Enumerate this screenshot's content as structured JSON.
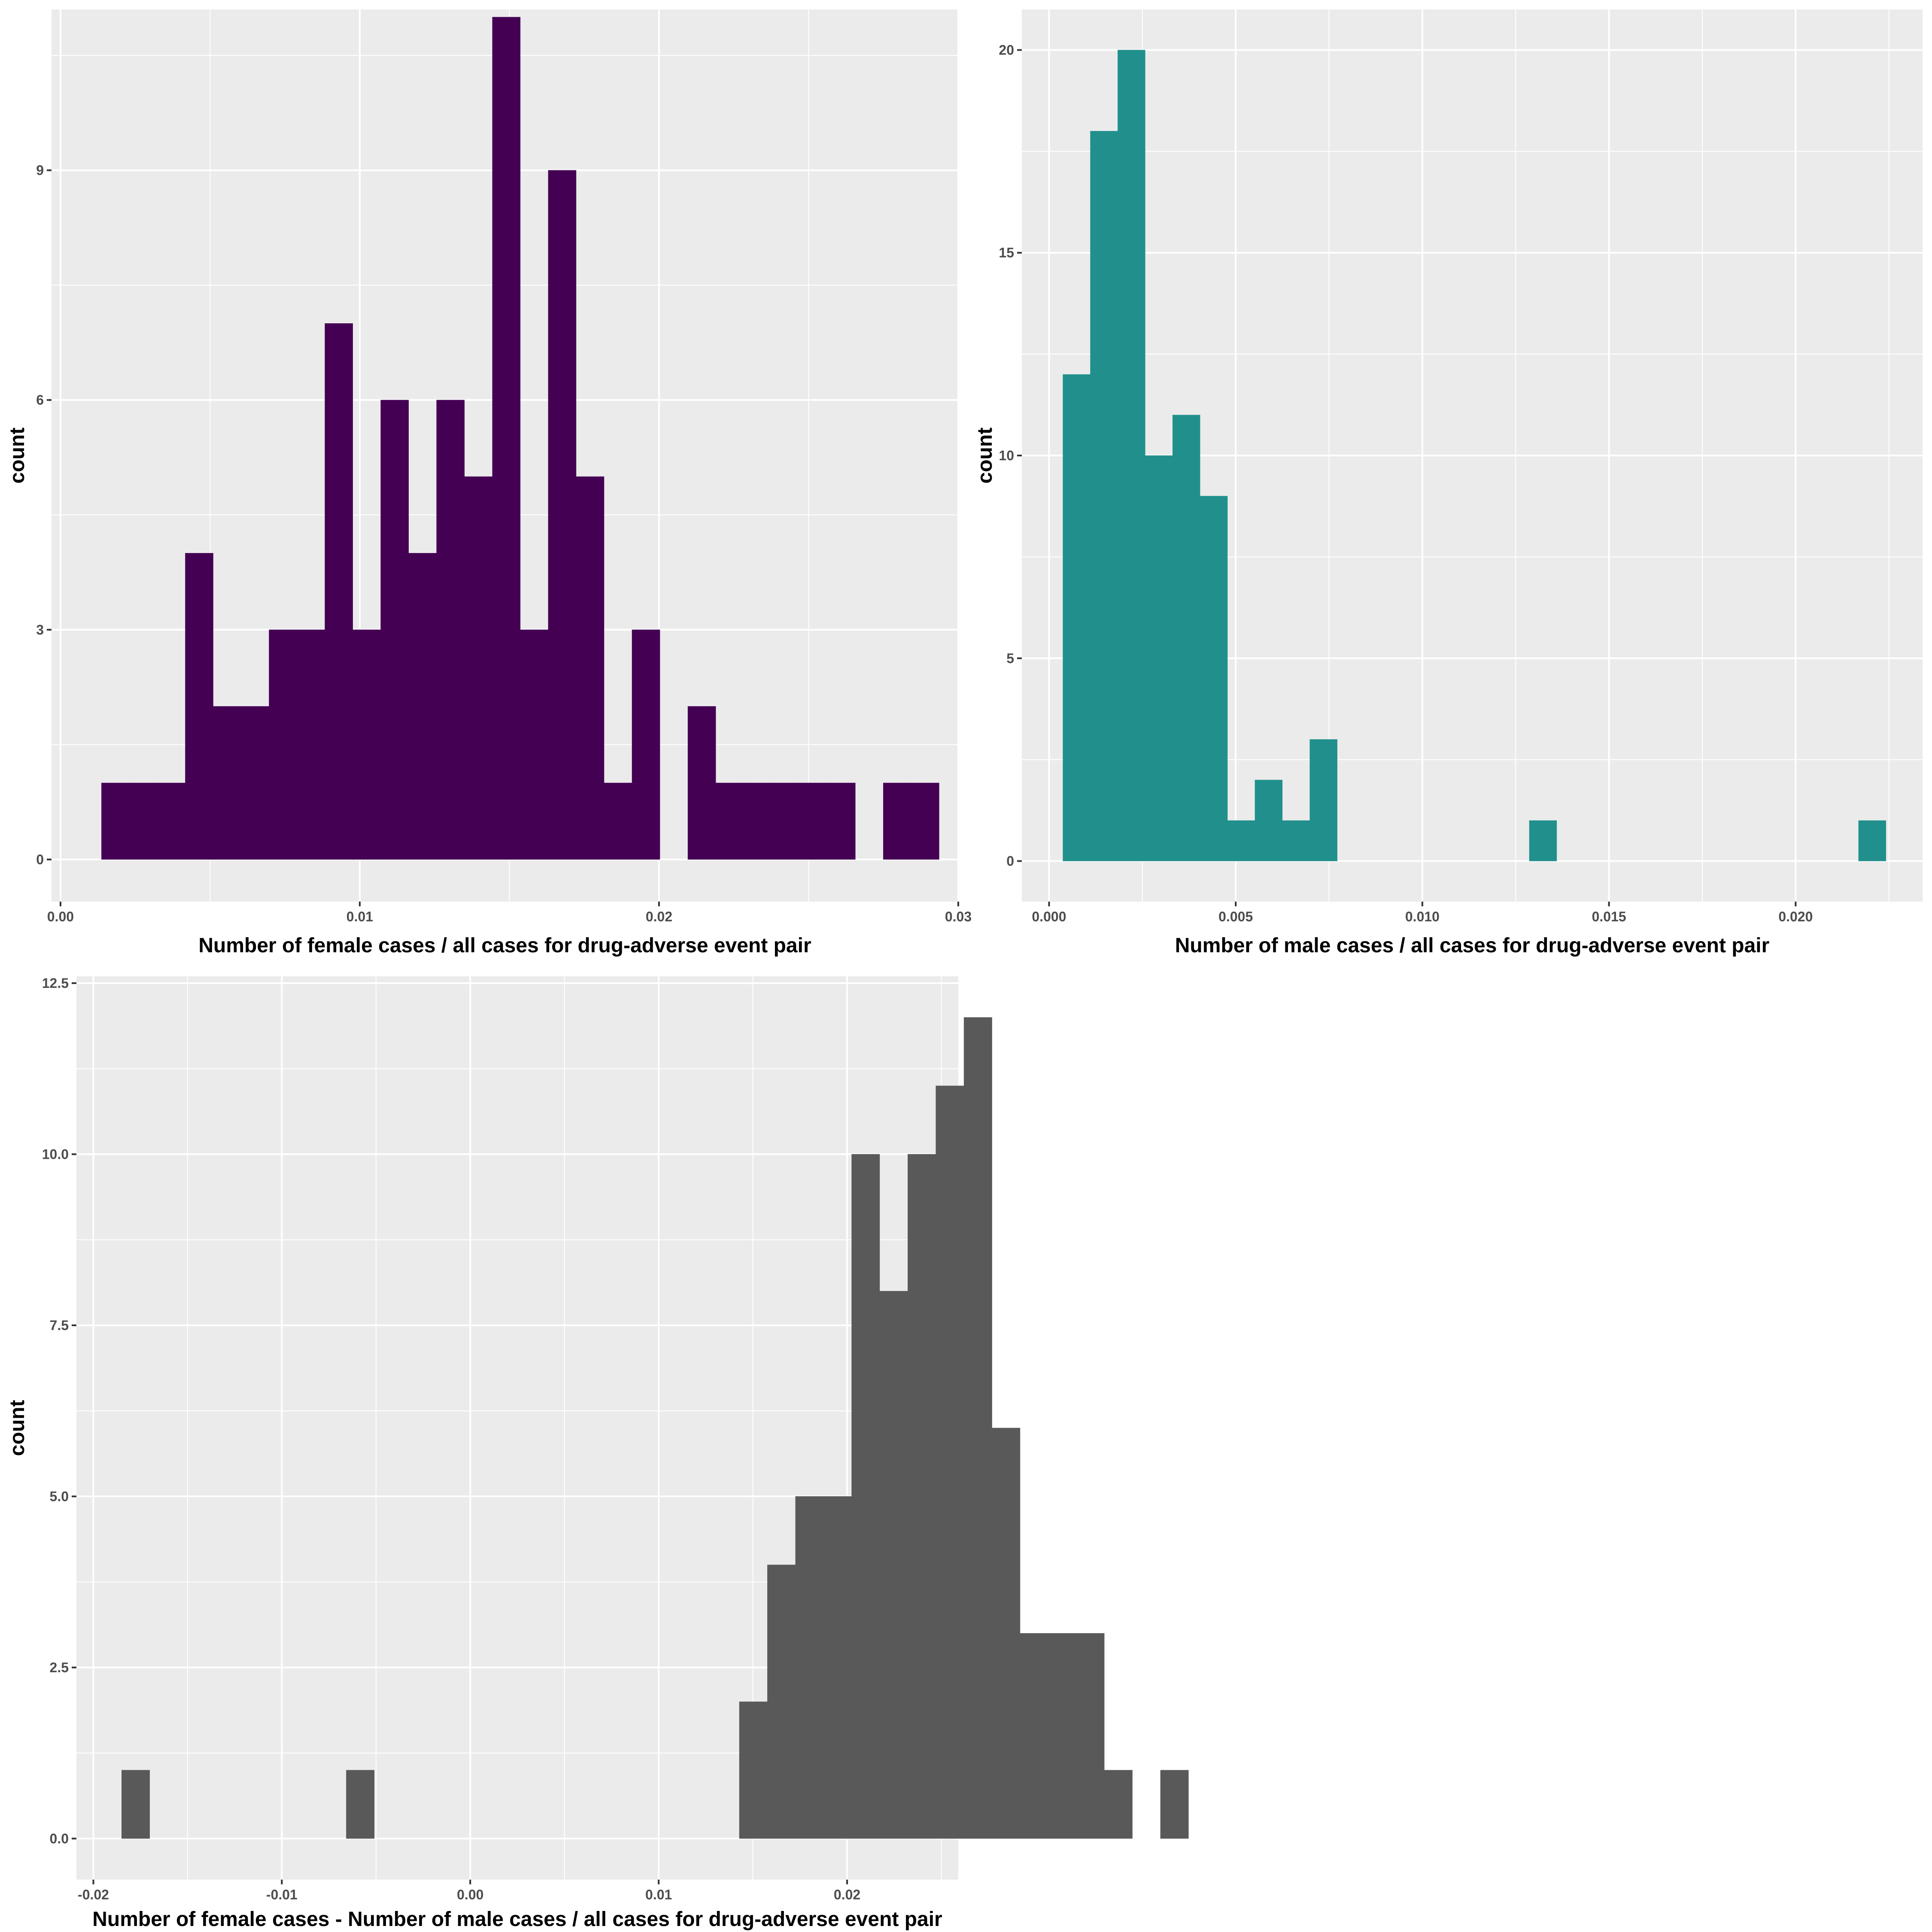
{
  "chart_data": [
    {
      "type": "bar",
      "subtype": "histogram",
      "fill": "#440154",
      "xlabel": "Number of female cases / all cases for drug-adverse event pair",
      "ylabel": "count",
      "xlim": [
        -0.0003,
        0.03
      ],
      "ylim": [
        -0.55,
        11.1
      ],
      "x_ticks": [
        0.0,
        0.01,
        0.02,
        0.03
      ],
      "x_tick_labels": [
        "0.00",
        "0.01",
        "0.02",
        "0.03"
      ],
      "y_ticks": [
        0,
        3,
        6,
        9
      ],
      "y_tick_labels": [
        "0",
        "3",
        "6",
        "9"
      ],
      "bin_start": 0.00137,
      "bin_width": 0.000933,
      "counts": [
        1,
        1,
        1,
        4,
        2,
        2,
        3,
        3,
        7,
        3,
        6,
        4,
        6,
        5,
        11,
        3,
        9,
        5,
        1,
        3,
        0,
        2,
        1,
        1,
        1,
        1,
        1,
        0,
        1,
        1
      ],
      "grid": true
    },
    {
      "type": "bar",
      "subtype": "histogram",
      "fill": "#21908C",
      "xlabel": "Number of male cases / all cases for drug-adverse event pair",
      "ylabel": "count",
      "xlim": [
        -0.00073,
        0.0234
      ],
      "ylim": [
        -1,
        21
      ],
      "x_ticks": [
        0.0,
        0.005,
        0.01,
        0.015,
        0.02
      ],
      "x_tick_labels": [
        "0.000",
        "0.005",
        "0.010",
        "0.015",
        "0.020"
      ],
      "y_ticks": [
        0,
        5,
        10,
        15,
        20
      ],
      "y_tick_labels": [
        "0",
        "5",
        "10",
        "15",
        "20"
      ],
      "bin_start": 0.00037,
      "bin_width": 0.000735,
      "counts": [
        12,
        18,
        20,
        10,
        11,
        9,
        1,
        2,
        1,
        3,
        0,
        0,
        0,
        0,
        0,
        0,
        0,
        1,
        0,
        0,
        0,
        0,
        0,
        0,
        0,
        0,
        0,
        0,
        0,
        1
      ],
      "grid": true
    },
    {
      "type": "bar",
      "subtype": "histogram",
      "fill": "#595959",
      "xlabel": "Number of female cases - Number of male cases / all cases for drug-adverse event pair",
      "ylabel": "count",
      "xlim": [
        -0.0209,
        0.0259
      ],
      "ylim": [
        -0.6,
        12.6
      ],
      "x_ticks": [
        -0.02,
        -0.01,
        0.0,
        0.01,
        0.02
      ],
      "x_tick_labels": [
        "-0.02",
        "-0.01",
        "0.00",
        "0.01",
        "0.02"
      ],
      "y_ticks": [
        0.0,
        2.5,
        5.0,
        7.5,
        10.0,
        12.5
      ],
      "y_tick_labels": [
        "0.0",
        "2.5",
        "5.0",
        "7.5",
        "10.0",
        "12.5"
      ],
      "bin_start": -0.0185,
      "bin_width": 0.00149,
      "counts": [
        1,
        0,
        0,
        0,
        0,
        0,
        0,
        0,
        1,
        0,
        0,
        0,
        0,
        0,
        0,
        0,
        0,
        0,
        0,
        0,
        0,
        0,
        2,
        4,
        5,
        5,
        10,
        8,
        10,
        11,
        12,
        6,
        3,
        3,
        3,
        1,
        0,
        1
      ],
      "grid": true
    }
  ]
}
